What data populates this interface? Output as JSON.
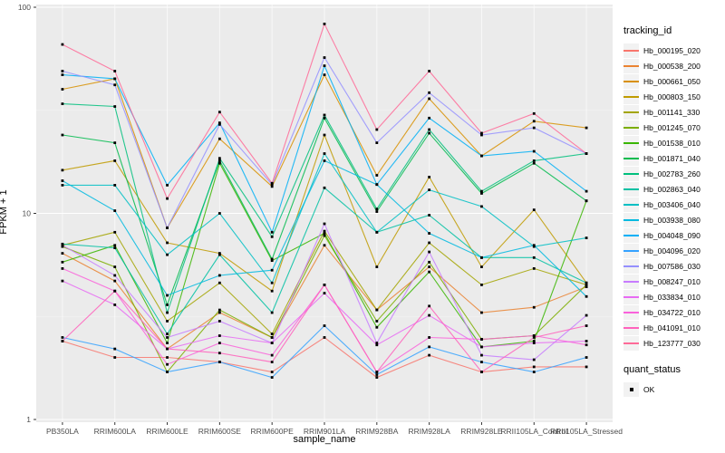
{
  "figure": {
    "background": "#FFFFFF",
    "panel_background": "#EBEBEB",
    "grid_major_color": "#FFFFFF",
    "grid_minor_color": "#F5F5F5",
    "axis_text_color": "#4D4D4D",
    "tick_mark_color": "#333333",
    "x_axis_title": "sample_name",
    "y_axis_title": "FPKM + 1"
  },
  "legend": {
    "tracking_title": "tracking_id",
    "quant_title": "quant_status",
    "quant_ok_label": "OK",
    "key_background": "#F2F2F2",
    "point_marker_color": "#000000"
  },
  "chart_data": {
    "type": "line",
    "title": "",
    "xlabel": "sample_name",
    "ylabel": "FPKM + 1",
    "y_scale": "log10",
    "ylim": [
      1,
      100
    ],
    "y_ticks": [
      1,
      10,
      100
    ],
    "grid": {
      "major": true,
      "minor": true
    },
    "legend_position": "right",
    "point_marker": {
      "shape": "square",
      "color": "#000000",
      "label": "OK"
    },
    "categories": [
      "PB350LA",
      "RRIM600LA",
      "RRIM600LE",
      "RRIM600SE",
      "RRIM600PE",
      "RRIM901LA",
      "RRIM928BA",
      "RRIM928LA",
      "RRIM928LE",
      "RRII105LA_Control",
      "RRII105LA_Stressed"
    ],
    "series": [
      {
        "name": "Hb_000195_020",
        "color": "#F8766D",
        "values": [
          2.4,
          2.0,
          2.0,
          1.9,
          1.7,
          2.5,
          1.6,
          2.05,
          1.7,
          1.8,
          1.8
        ]
      },
      {
        "name": "Hb_000538_200",
        "color": "#EA8331",
        "values": [
          6.4,
          4.7,
          2.2,
          3.3,
          2.5,
          7.0,
          3.4,
          5.5,
          3.3,
          3.5,
          4.4
        ]
      },
      {
        "name": "Hb_000661_050",
        "color": "#D89000",
        "values": [
          40,
          45,
          8.5,
          23,
          13.5,
          47,
          15.3,
          36,
          19,
          28,
          26
        ]
      },
      {
        "name": "Hb_000803_150",
        "color": "#C09B00",
        "values": [
          16.2,
          18,
          7.2,
          6.4,
          4.2,
          24,
          5.5,
          15,
          5.5,
          10.4,
          4.6
        ]
      },
      {
        "name": "Hb_001141_330",
        "color": "#A3A500",
        "values": [
          7.0,
          8.1,
          3.0,
          4.6,
          2.6,
          8.2,
          3.4,
          7.2,
          4.5,
          5.4,
          4.5
        ]
      },
      {
        "name": "Hb_001245_070",
        "color": "#7CAE00",
        "values": [
          6.9,
          5.5,
          1.7,
          3.4,
          2.5,
          7.8,
          3.0,
          5.8,
          2.45,
          2.55,
          4.5
        ]
      },
      {
        "name": "Hb_001538_010",
        "color": "#39B600",
        "values": [
          5.8,
          7.0,
          2.35,
          17.5,
          5.9,
          8.0,
          2.8,
          5.2,
          2.25,
          2.4,
          11.5
        ]
      },
      {
        "name": "Hb_001871_040",
        "color": "#00BB4E",
        "values": [
          24,
          22,
          3.6,
          18,
          6.0,
          29,
          10.2,
          24.5,
          12.5,
          17.5,
          11.5
        ]
      },
      {
        "name": "Hb_002783_260",
        "color": "#00BF7D",
        "values": [
          34,
          33,
          3.3,
          18.5,
          7.7,
          30,
          10.5,
          25.5,
          12.8,
          18,
          19.5
        ]
      },
      {
        "name": "Hb_002863_040",
        "color": "#00C1A3",
        "values": [
          7.1,
          6.8,
          2.6,
          6.3,
          3.3,
          13.3,
          8.1,
          9.8,
          6.1,
          6.1,
          4.6
        ]
      },
      {
        "name": "Hb_003406_040",
        "color": "#00BFC4",
        "values": [
          13.7,
          13.7,
          6.3,
          10,
          4.6,
          19.5,
          8.1,
          13,
          10.8,
          6.9,
          7.6
        ]
      },
      {
        "name": "Hb_003938_080",
        "color": "#00BAE0",
        "values": [
          14.4,
          10.3,
          4.0,
          5.0,
          5.3,
          18,
          13.8,
          8.0,
          6.1,
          7.0,
          3.95
        ]
      },
      {
        "name": "Hb_004048_090",
        "color": "#00B0F6",
        "values": [
          47,
          45,
          13.7,
          27.5,
          8.1,
          52,
          13.8,
          29,
          19,
          20,
          12.8
        ]
      },
      {
        "name": "Hb_004096_020",
        "color": "#35A2FF",
        "values": [
          2.5,
          2.2,
          1.7,
          1.9,
          1.6,
          2.85,
          1.65,
          2.25,
          1.9,
          1.7,
          2.0
        ]
      },
      {
        "name": "Hb_007586_030",
        "color": "#9590FF",
        "values": [
          49,
          42,
          8.5,
          27,
          13.8,
          57,
          22,
          38.5,
          24,
          26,
          19.5
        ]
      },
      {
        "name": "Hb_008247_010",
        "color": "#C77CFF",
        "values": [
          7.0,
          5.0,
          2.5,
          3.0,
          2.35,
          8.9,
          2.35,
          6.5,
          2.05,
          1.95,
          3.2
        ]
      },
      {
        "name": "Hb_033834_010",
        "color": "#E76BF3",
        "values": [
          4.7,
          3.6,
          2.2,
          2.55,
          2.35,
          4.1,
          2.3,
          3.2,
          2.25,
          2.35,
          2.4
        ]
      },
      {
        "name": "Hb_034722_010",
        "color": "#FA62DB",
        "values": [
          5.4,
          4.2,
          1.85,
          2.35,
          2.05,
          4.5,
          1.7,
          2.5,
          2.45,
          2.55,
          2.3
        ]
      },
      {
        "name": "Hb_041091_010",
        "color": "#FF62BC",
        "values": [
          2.4,
          4.2,
          2.2,
          2.1,
          1.9,
          4.5,
          1.7,
          3.55,
          1.7,
          2.5,
          2.85
        ]
      },
      {
        "name": "Hb_123777_030",
        "color": "#FF6A98",
        "values": [
          66,
          49,
          11.8,
          31,
          14,
          83,
          25.5,
          49,
          24.5,
          30.5,
          19.5
        ]
      }
    ]
  }
}
